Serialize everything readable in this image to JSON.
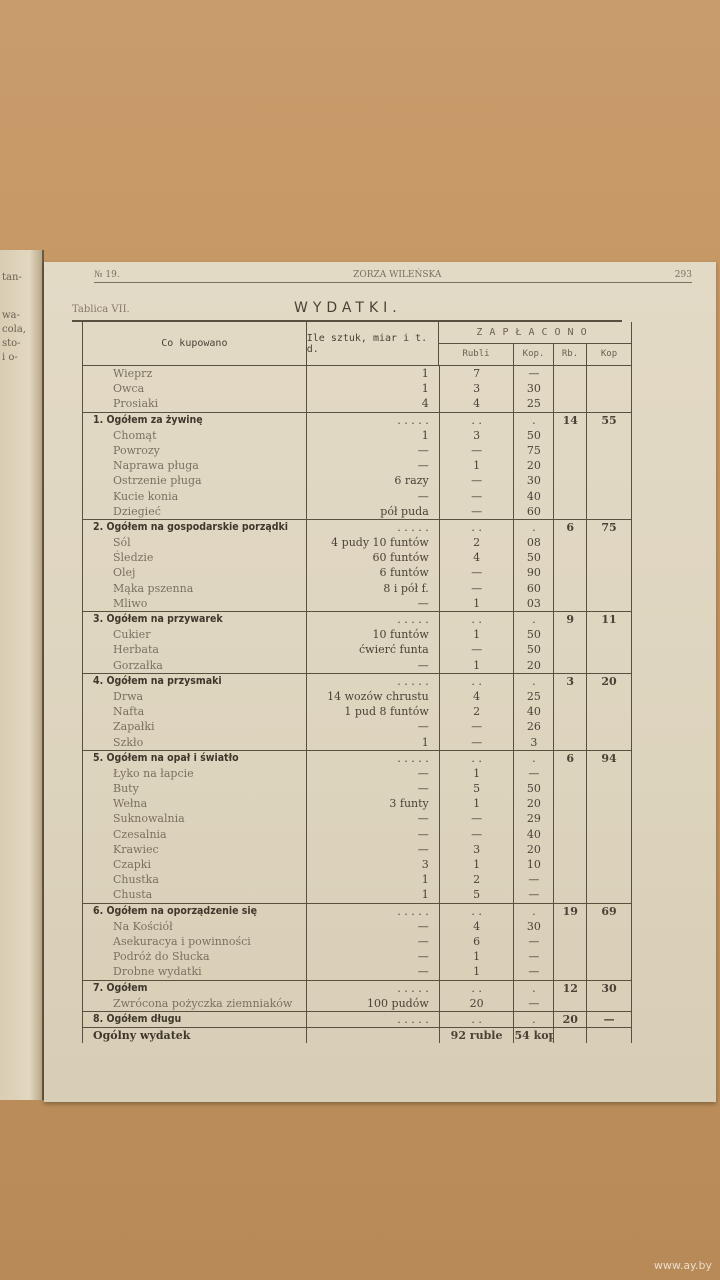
{
  "left_page_fragments": [
    "tan-",
    "wa-",
    "cola,",
    "sto-",
    "i o-"
  ],
  "running_head": {
    "number": "№ 19.",
    "journal": "ZORZA WILEŃSKA",
    "page": "293"
  },
  "table_label": "Tablica VII.",
  "title": "WYDATKI.",
  "columns": {
    "item": "Co kupowano",
    "qty": "Ile sztuk, miar i t. d.",
    "paid": "ZAPŁACONO",
    "rubli": "Rubli",
    "kop": "Kop.",
    "rb": "Rb.",
    "kop2": "Kop"
  },
  "sections": [
    {
      "header": null,
      "items": [
        [
          "Wieprz",
          "1",
          "7",
          "—"
        ],
        [
          "Owca",
          "1",
          "3",
          "30"
        ],
        [
          "Prosiaki",
          "4",
          "4",
          "25"
        ]
      ]
    },
    {
      "header": "1. Ogółem za żywinę",
      "total": [
        "14",
        "55"
      ],
      "items": [
        [
          "Chomąt",
          "1",
          "3",
          "50"
        ],
        [
          "Powrozy",
          "—",
          "—",
          "75"
        ],
        [
          "Naprawa pługa",
          "—",
          "1",
          "20"
        ],
        [
          "Ostrzenie pługa",
          "6 razy",
          "—",
          "30"
        ],
        [
          "Kucie konia",
          "—",
          "—",
          "40"
        ],
        [
          "Dziegieć",
          "pół puda",
          "—",
          "60"
        ]
      ]
    },
    {
      "header": "2. Ogółem na gospodarskie porządki",
      "total": [
        "6",
        "75"
      ],
      "items": [
        [
          "Sól",
          "4 pudy 10 funtów",
          "2",
          "08"
        ],
        [
          "Śledzie",
          "60 funtów",
          "4",
          "50"
        ],
        [
          "Olej",
          "6 funtów",
          "—",
          "90"
        ],
        [
          "Mąka pszenna",
          "8 i pół f.",
          "—",
          "60"
        ],
        [
          "Mliwo",
          "—",
          "1",
          "03"
        ]
      ]
    },
    {
      "header": "3. Ogółem na przywarek",
      "total": [
        "9",
        "11"
      ],
      "items": [
        [
          "Cukier",
          "10 funtów",
          "1",
          "50"
        ],
        [
          "Herbata",
          "ćwierć funta",
          "—",
          "50"
        ],
        [
          "Gorzałka",
          "—",
          "1",
          "20"
        ]
      ]
    },
    {
      "header": "4. Ogółem na przysmaki",
      "total": [
        "3",
        "20"
      ],
      "items": [
        [
          "Drwa",
          "14 wozów chrustu",
          "4",
          "25"
        ],
        [
          "Nafta",
          "1 pud 8 funtów",
          "2",
          "40"
        ],
        [
          "Zapałki",
          "—",
          "—",
          "26"
        ],
        [
          "Szkło",
          "1",
          "—",
          "3"
        ]
      ]
    },
    {
      "header": "5. Ogółem na opał i światło",
      "total": [
        "6",
        "94"
      ],
      "items": [
        [
          "Łyko na łapcie",
          "—",
          "1",
          "—"
        ],
        [
          "Buty",
          "—",
          "5",
          "50"
        ],
        [
          "Wełna",
          "3 funty",
          "1",
          "20"
        ],
        [
          "Suknowalnia",
          "—",
          "—",
          "29"
        ],
        [
          "Czesalnia",
          "—",
          "—",
          "40"
        ],
        [
          "Krawiec",
          "—",
          "3",
          "20"
        ],
        [
          "Czapki",
          "3",
          "1",
          "10"
        ],
        [
          "Chustka",
          "1",
          "2",
          "—"
        ],
        [
          "Chusta",
          "1",
          "5",
          "—"
        ]
      ]
    },
    {
      "header": "6. Ogółem na oporządzenie się",
      "total": [
        "19",
        "69"
      ],
      "items": [
        [
          "Na Kościół",
          "—",
          "4",
          "30"
        ],
        [
          "Asekuracya i powinności",
          "—",
          "6",
          "—"
        ],
        [
          "Podróż do Słucka",
          "—",
          "1",
          "—"
        ],
        [
          "Drobne wydatki",
          "—",
          "1",
          "—"
        ]
      ]
    },
    {
      "header": "7. Ogółem",
      "total": [
        "12",
        "30"
      ],
      "items": [
        [
          "Zwrócona pożyczka ziemniaków",
          "100 pudów",
          "20",
          "—"
        ]
      ]
    },
    {
      "header": "8. Ogółem długu",
      "total": [
        "20",
        "—"
      ],
      "items": []
    }
  ],
  "grand_total": {
    "label": "Ogólny wydatek",
    "rubles": "92 ruble",
    "kop": "54 kop."
  },
  "watermark": "www.ay.by"
}
